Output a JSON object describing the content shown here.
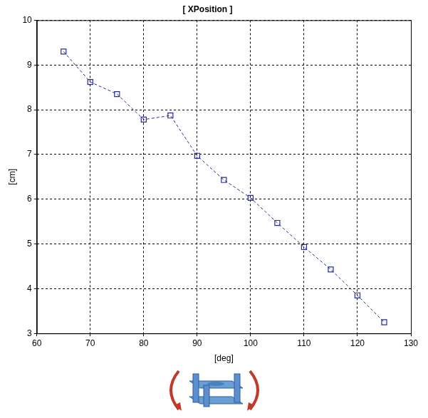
{
  "chart_data": {
    "type": "line",
    "title": "[ XPosition ]",
    "x_label": "[deg]",
    "y_label": "[cm]",
    "x": [
      65,
      70,
      75,
      80,
      85,
      90,
      95,
      100,
      105,
      110,
      115,
      120,
      125
    ],
    "values": [
      9.3,
      8.62,
      8.35,
      7.78,
      7.87,
      6.97,
      6.43,
      6.03,
      5.47,
      4.93,
      4.43,
      3.85,
      3.25
    ],
    "color": "#2a2aa0",
    "marker": "square",
    "line_style": "dashed",
    "xlim": [
      60,
      130
    ],
    "xticks": [
      60,
      70,
      80,
      90,
      100,
      110,
      120,
      130
    ],
    "ylim": [
      3,
      10
    ],
    "yticks": [
      3,
      4,
      5,
      6,
      7,
      8,
      9,
      10
    ],
    "grid": true
  }
}
